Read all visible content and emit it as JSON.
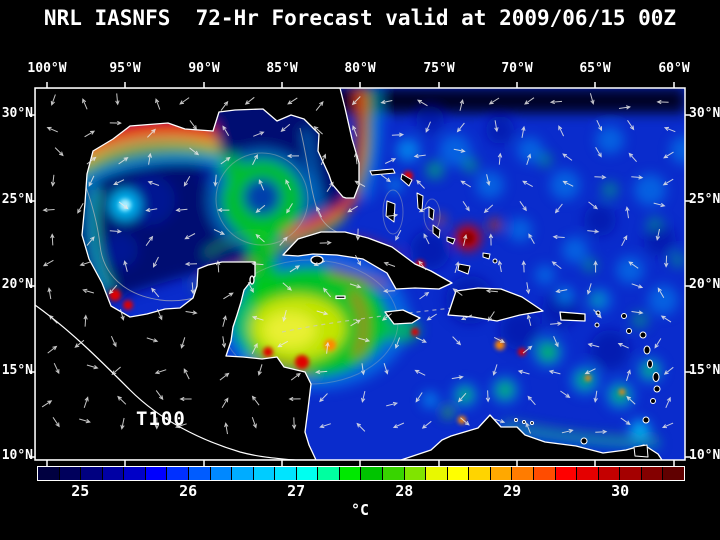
{
  "title": "NRL IASNFS  72-Hr Forecast valid at 2009/06/15 00Z",
  "axes": {
    "lon_labels": [
      "100°W",
      "95°W",
      "90°W",
      "85°W",
      "80°W",
      "75°W",
      "70°W",
      "65°W",
      "60°W"
    ],
    "lat_labels_left": [
      "30°N",
      "25°N",
      "20°N",
      "15°N",
      "10°N"
    ],
    "lat_labels_right": [
      "30°N",
      "25°N",
      "20°N",
      "15°N",
      "10°N"
    ]
  },
  "map": {
    "overlay_label": "T100"
  },
  "colorbar": {
    "unit": "°C",
    "tick_labels": [
      "25",
      "26",
      "27",
      "28",
      "29",
      "30"
    ],
    "cell_colors": [
      "#000040",
      "#00005c",
      "#000080",
      "#0000a4",
      "#0000c8",
      "#0000ff",
      "#0030ff",
      "#005cff",
      "#0088ff",
      "#00acff",
      "#00ccff",
      "#00e4ff",
      "#00fff0",
      "#00ffa0",
      "#00e800",
      "#00c400",
      "#38d400",
      "#80e400",
      "#e8f800",
      "#ffff00",
      "#ffd400",
      "#ffa800",
      "#ff7c00",
      "#ff4c00",
      "#ff0000",
      "#e40000",
      "#c40000",
      "#a40000",
      "#840000",
      "#600000"
    ]
  },
  "chart_data": {
    "type": "heatmap",
    "title": "NRL IASNFS 72-Hr Forecast valid at 2009/06/15 00Z",
    "variable": "T100",
    "units": "°C",
    "colorbar_tick_values": [
      25,
      26,
      27,
      28,
      29,
      30
    ],
    "colorbar_range_estimate": [
      24.6,
      30.6
    ],
    "x_ticks": [
      "100°W",
      "95°W",
      "90°W",
      "85°W",
      "80°W",
      "75°W",
      "70°W",
      "65°W",
      "60°W"
    ],
    "y_ticks": [
      "30°N",
      "25°N",
      "20°N",
      "15°N",
      "10°N"
    ],
    "overlays": [
      "coastlines",
      "white current-vector arrows"
    ],
    "legend_position": "bottom"
  }
}
